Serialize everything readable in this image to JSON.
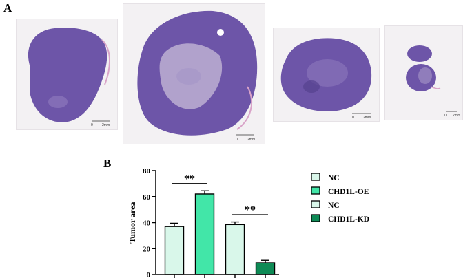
{
  "panels": {
    "a_label": "A",
    "b_label": "B"
  },
  "histology": {
    "scale_zero": "0",
    "scale_unit": "2mm",
    "colors": {
      "tissue": "#6d55a8",
      "tissue_dark": "#56428f",
      "necrosis": "#c8bcd8",
      "background": "#f3f1f3",
      "capsule": "#d9a3c8"
    }
  },
  "chart_data": {
    "type": "bar",
    "ylabel": "Tumor area",
    "ylim": [
      0,
      80
    ],
    "yticks": [
      0,
      20,
      40,
      60,
      80
    ],
    "series": [
      {
        "name": "NC",
        "value": 37,
        "error": 2.5,
        "color": "#d9f7ea"
      },
      {
        "name": "CHD1L-OE",
        "value": 62,
        "error": 2.5,
        "color": "#42e6a8"
      },
      {
        "name": "NC",
        "value": 38.5,
        "error": 2,
        "color": "#d9f7ea"
      },
      {
        "name": "CHD1L-KD",
        "value": 9,
        "error": 2,
        "color": "#0e8a55"
      }
    ],
    "significance": [
      {
        "label": "**",
        "from": 0,
        "to": 1,
        "y": 70
      },
      {
        "label": "**",
        "from": 2,
        "to": 3,
        "y": 46
      }
    ],
    "legend_position": "right"
  }
}
